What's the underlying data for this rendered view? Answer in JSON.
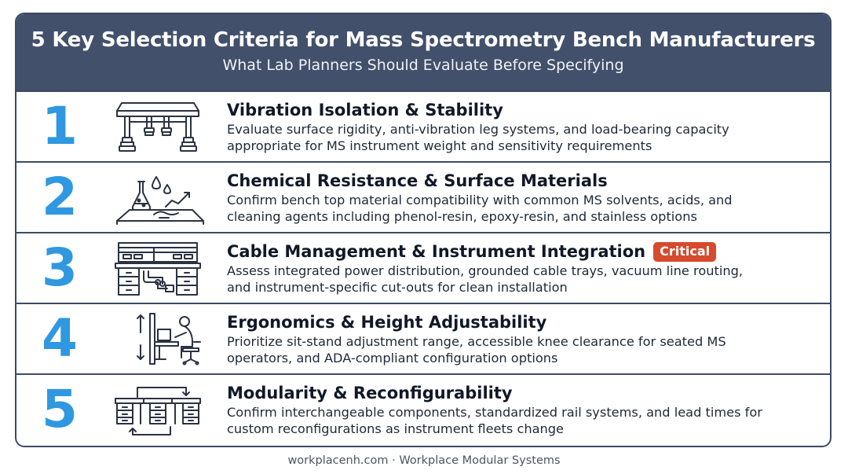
{
  "header": {
    "title": "5 Key Selection Criteria for Mass Spectrometry Bench Manufacturers",
    "subtitle": "What Lab Planners Should Evaluate Before Specifying"
  },
  "criteria": [
    {
      "number": "1",
      "icon": "lab-bench-vibration-icon",
      "heading": "Vibration Isolation & Stability",
      "line1": "Evaluate surface rigidity, anti-vibration leg systems, and load-bearing capacity",
      "line2": "appropriate for MS instrument weight and sensitivity requirements"
    },
    {
      "number": "2",
      "icon": "chemical-flask-surface-icon",
      "heading": "Chemical Resistance & Surface Materials",
      "line1": "Confirm bench top material compatibility with common MS solvents, acids, and",
      "line2": "cleaning agents  including phenol-resin, epoxy-resin, and stainless options"
    },
    {
      "number": "3",
      "icon": "bench-cable-management-icon",
      "heading": "Cable Management & Instrument Integration",
      "badge": "Critical",
      "line1": "Assess integrated power distribution, grounded cable trays, vacuum line routing,",
      "line2": "and instrument-specific cut-outs for clean installation"
    },
    {
      "number": "4",
      "icon": "ergonomic-height-adjust-icon",
      "heading": "Ergonomics & Height Adjustability",
      "line1": "Prioritize sit-stand adjustment range, accessible knee clearance for seated MS",
      "line2": "operators, and ADA-compliant configuration options"
    },
    {
      "number": "5",
      "icon": "modular-reconfigure-icon",
      "heading": "Modularity & Reconfigurability",
      "line1": "Confirm interchangeable components, standardized rail systems, and lead times for",
      "line2": "custom reconfigurations as instrument fleets change"
    }
  ],
  "footer": "workplacenh.com · Workplace Modular Systems",
  "colors": {
    "header_bg": "#42506b",
    "number": "#2f98e0",
    "badge": "#d64a2d",
    "border": "#3d4a63"
  }
}
